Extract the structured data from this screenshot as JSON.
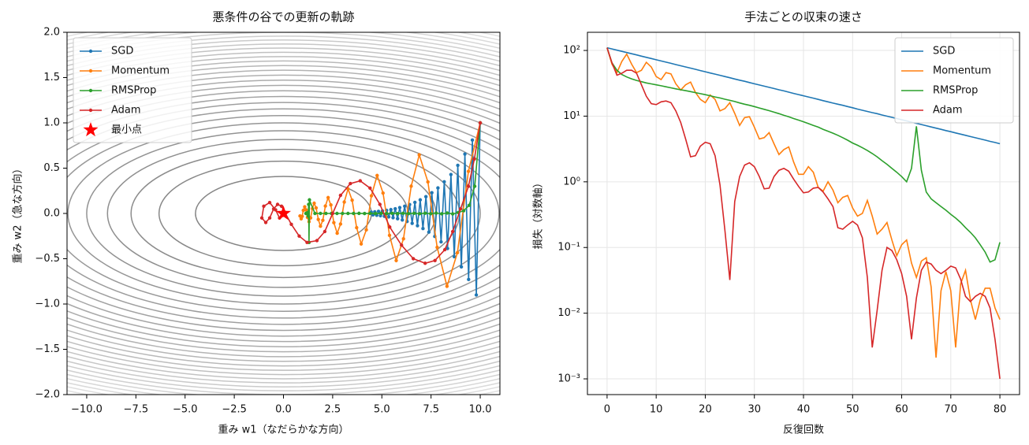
{
  "chart_data": [
    {
      "type": "line",
      "title": "悪条件の谷での更新の軌跡",
      "xlabel": "重み w1（なだらかな方向）",
      "ylabel": "重み w2（急な方向）",
      "xlim": [
        -11,
        11
      ],
      "ylim": [
        -2,
        2
      ],
      "xticks": [
        {
          "value": -10,
          "label": "−10.0"
        },
        {
          "value": -7.5,
          "label": "−7.5"
        },
        {
          "value": -5,
          "label": "−5.0"
        },
        {
          "value": -2.5,
          "label": "−2.5"
        },
        {
          "value": 0,
          "label": "0.0"
        },
        {
          "value": 2.5,
          "label": "2.5"
        },
        {
          "value": 5,
          "label": "5.0"
        },
        {
          "value": 7.5,
          "label": "7.5"
        },
        {
          "value": 10,
          "label": "10.0"
        }
      ],
      "yticks": [
        {
          "value": -2,
          "label": "−2.0"
        },
        {
          "value": -1.5,
          "label": "−1.5"
        },
        {
          "value": -1,
          "label": "−1.0"
        },
        {
          "value": -0.5,
          "label": "−0.5"
        },
        {
          "value": 0,
          "label": "0.0"
        },
        {
          "value": 0.5,
          "label": "0.5"
        },
        {
          "value": 1,
          "label": "1.0"
        },
        {
          "value": 1.5,
          "label": "1.5"
        },
        {
          "value": 2,
          "label": "2.0"
        }
      ],
      "grid": false,
      "markers": true,
      "legend": "upper left",
      "contours": {
        "levels": [
          10,
          20,
          30,
          40,
          50,
          60,
          70,
          80,
          90,
          100,
          110,
          120,
          130,
          140,
          150,
          160,
          170,
          180,
          190,
          200,
          210,
          220,
          230,
          240,
          250,
          260,
          270,
          280,
          290,
          300
        ],
        "weights": [
          1,
          120
        ],
        "colors": [
          "#858585",
          "#e4e4e4"
        ]
      },
      "series": [
        {
          "name": "SGD",
          "color": "#1f77b4",
          "x": [
            10,
            9.8,
            9.6,
            9.41,
            9.22,
            9.04,
            8.86,
            8.68,
            8.51,
            8.34,
            8.17,
            8.01,
            7.85,
            7.69,
            7.54,
            7.39,
            7.24,
            7.09,
            6.95,
            6.81,
            6.68,
            6.54,
            6.41,
            6.28,
            6.16,
            6.04,
            5.91,
            5.8,
            5.68,
            5.57,
            5.46,
            5.35,
            5.24,
            5.13,
            5.03,
            4.93,
            4.83,
            4.74,
            4.64,
            4.55,
            4.46
          ],
          "values": [
            1,
            -0.9,
            0.81,
            -0.729,
            0.656,
            -0.59,
            0.531,
            -0.478,
            0.43,
            -0.387,
            0.349,
            -0.314,
            0.282,
            -0.254,
            0.229,
            -0.206,
            0.185,
            -0.167,
            0.15,
            -0.135,
            0.122,
            -0.109,
            0.098,
            -0.089,
            0.08,
            -0.072,
            0.065,
            -0.058,
            0.052,
            -0.047,
            0.042,
            -0.038,
            0.034,
            -0.031,
            0.028,
            -0.025,
            0.023,
            -0.02,
            0.018,
            -0.016,
            0.015
          ]
        },
        {
          "name": "Momentum",
          "color": "#ff7f0e",
          "x": [
            10,
            9.4,
            8.84,
            8.31,
            7.81,
            7.34,
            6.9,
            6.49,
            6.1,
            5.73,
            5.39,
            5.06,
            4.76,
            4.47,
            4.21,
            3.95,
            3.72,
            3.49,
            3.28,
            3.09,
            2.9,
            2.73,
            2.56,
            2.41,
            2.27,
            2.13,
            2,
            1.88,
            1.77,
            1.66,
            1.56,
            1.47,
            1.38,
            1.3,
            1.22,
            1.15,
            1.08,
            1.01,
            0.95,
            0.9,
            0.84
          ],
          "values": [
            1,
            0.465,
            -0.433,
            -0.804,
            -0.374,
            0.348,
            0.647,
            0.301,
            -0.28,
            -0.52,
            -0.242,
            0.225,
            0.419,
            0.195,
            -0.181,
            -0.337,
            -0.157,
            0.146,
            0.271,
            0.126,
            -0.117,
            -0.218,
            -0.102,
            0.094,
            0.175,
            0.082,
            -0.076,
            -0.141,
            -0.066,
            0.061,
            0.113,
            0.053,
            -0.049,
            -0.091,
            -0.043,
            0.04,
            0.073,
            0.034,
            -0.032,
            -0.059,
            -0.028
          ]
        },
        {
          "name": "RMSProp",
          "color": "#2ca02c",
          "x": [
            10,
            9.72,
            9.44,
            9.16,
            8.88,
            8.6,
            8.32,
            8.04,
            7.76,
            7.48,
            7.2,
            6.92,
            6.64,
            6.36,
            6.08,
            5.8,
            5.52,
            5.24,
            4.96,
            4.68,
            4.4,
            4.12,
            3.84,
            3.56,
            3.28,
            3,
            2.72,
            2.44,
            2.16,
            1.88,
            1.6,
            1.32,
            1.3,
            1.28,
            1.26,
            1.24,
            1.22,
            1.2,
            1.18,
            1.16,
            1.14
          ],
          "values": [
            1,
            0.3,
            0.09,
            0.03,
            0.01,
            -0.005,
            0.005,
            -0.004,
            0.004,
            -0.003,
            0.003,
            -0.003,
            0.002,
            -0.002,
            0.002,
            -0.002,
            0.002,
            -0.001,
            0.001,
            -0.001,
            0.001,
            -0.001,
            0.001,
            0,
            0,
            0,
            0,
            0,
            0,
            0,
            0,
            0.15,
            -0.32,
            0.1,
            -0.03,
            0.01,
            0,
            0,
            0,
            0,
            0
          ]
        },
        {
          "name": "Adam",
          "color": "#d62728",
          "x": [
            10,
            9.7,
            9.4,
            9,
            8.6,
            8.2,
            7.7,
            7.2,
            6.6,
            6,
            5.4,
            4.9,
            4.4,
            3.9,
            3.4,
            2.9,
            2.5,
            2.1,
            1.7,
            1.2,
            0.8,
            0.4,
            0.1,
            -0.1,
            -0.3,
            -0.5,
            -0.7,
            -0.9,
            -1.1,
            -1,
            -0.7,
            -0.4,
            -0.2,
            0,
            0.1
          ],
          "values": [
            1,
            0.6,
            0.3,
            0.05,
            -0.2,
            -0.4,
            -0.52,
            -0.55,
            -0.5,
            -0.35,
            -0.15,
            0.1,
            0.28,
            0.36,
            0.33,
            0.2,
            0,
            -0.2,
            -0.3,
            -0.32,
            -0.25,
            -0.12,
            0,
            0.08,
            0.1,
            0.05,
            -0.05,
            -0.1,
            -0.05,
            0.08,
            0.12,
            0.04,
            -0.05,
            -0.02,
            0.01
          ]
        }
      ],
      "marker_point": {
        "name": "最小点",
        "x": 0,
        "y": 0,
        "color": "#ff0000"
      }
    },
    {
      "type": "line",
      "title": "手法ごとの収束の速さ",
      "xlabel": "反復回数",
      "ylabel": "損失（対数軸）",
      "xlim": [
        -4,
        84
      ],
      "ylim": [
        0.000576,
        189
      ],
      "ylog": true,
      "grid": true,
      "markers": false,
      "legend": "upper right",
      "xticks": [
        0,
        10,
        20,
        30,
        40,
        50,
        60,
        70,
        80
      ],
      "yticks": [
        {
          "value": 0.001,
          "label": "10⁻³"
        },
        {
          "value": 0.01,
          "label": "10⁻²"
        },
        {
          "value": 0.1,
          "label": "10⁻¹"
        },
        {
          "value": 1,
          "label": "10⁰"
        },
        {
          "value": 10,
          "label": "10¹"
        },
        {
          "value": 100,
          "label": "10²"
        }
      ],
      "x": [
        0,
        1,
        2,
        3,
        4,
        5,
        6,
        7,
        8,
        9,
        10,
        11,
        12,
        13,
        14,
        15,
        16,
        17,
        18,
        19,
        20,
        21,
        22,
        23,
        24,
        25,
        26,
        27,
        28,
        29,
        30,
        31,
        32,
        33,
        34,
        35,
        36,
        37,
        38,
        39,
        40,
        41,
        42,
        43,
        44,
        45,
        46,
        47,
        48,
        49,
        50,
        51,
        52,
        53,
        54,
        55,
        56,
        57,
        58,
        59,
        60,
        61,
        62,
        63,
        64,
        65,
        66,
        67,
        68,
        69,
        70,
        71,
        72,
        73,
        74,
        75,
        76,
        77,
        78,
        79,
        80
      ],
      "series": [
        {
          "name": "SGD",
          "color": "#1f77b4",
          "values": [
            110,
            105.5,
            101.1,
            96.95,
            92.96,
            89.13,
            85.46,
            81.94,
            78.56,
            75.33,
            72.2,
            69.2,
            66.4,
            63.6,
            61,
            58.5,
            56.1,
            53.8,
            51.6,
            49.4,
            47.4,
            45.4,
            43.6,
            41.8,
            40.1,
            38.4,
            36.8,
            35.3,
            33.9,
            32.5,
            31.1,
            29.8,
            28.6,
            27.4,
            26.3,
            25.2,
            24.2,
            23.2,
            22.2,
            21.3,
            20.4,
            19.6,
            18.8,
            18,
            17.2,
            16.5,
            15.8,
            15.2,
            14.6,
            14,
            13.4,
            12.8,
            12.3,
            11.8,
            11.3,
            10.9,
            10.4,
            9.98,
            9.57,
            9.18,
            8.81,
            8.45,
            8.1,
            7.77,
            7.45,
            7.14,
            6.84,
            6.56,
            6.29,
            6.03,
            5.79,
            5.55,
            5.32,
            5.1,
            4.89,
            4.69,
            4.5,
            4.31,
            4.13,
            3.97,
            3.8
          ]
        },
        {
          "name": "Momentum",
          "color": "#ff7f0e",
          "values": [
            110,
            62,
            46,
            68,
            88,
            62,
            46,
            50,
            66,
            56,
            40,
            36,
            46,
            44,
            31,
            25,
            30,
            33,
            23,
            18,
            16,
            21,
            18,
            12,
            13,
            16,
            11,
            7.2,
            9.5,
            9.8,
            6.8,
            4.5,
            4.7,
            5.6,
            3.8,
            2.6,
            3.1,
            3.4,
            2,
            1.3,
            1.3,
            1.7,
            1.4,
            0.82,
            0.72,
            1,
            0.75,
            0.48,
            0.58,
            0.62,
            0.4,
            0.3,
            0.33,
            0.52,
            0.3,
            0.16,
            0.19,
            0.24,
            0.13,
            0.075,
            0.11,
            0.13,
            0.058,
            0.035,
            0.062,
            0.07,
            0.025,
            0.0021,
            0.022,
            0.043,
            0.022,
            0.003,
            0.028,
            0.045,
            0.016,
            0.008,
            0.016,
            0.024,
            0.024,
            0.012,
            0.008
          ]
        },
        {
          "name": "RMSProp",
          "color": "#2ca02c",
          "values": [
            110,
            65,
            50,
            43,
            39.5,
            37,
            35,
            33.5,
            32,
            31,
            30,
            29,
            28,
            27,
            26,
            25.2,
            24.4,
            23.6,
            22.8,
            22,
            21.2,
            20.4,
            19.6,
            18.9,
            18.1,
            17.4,
            16.7,
            15.9,
            15.2,
            14.6,
            14,
            13.3,
            12.7,
            12.1,
            11.5,
            10.9,
            10.3,
            9.8,
            9.2,
            8.7,
            8.2,
            7.7,
            7.2,
            6.8,
            6.3,
            5.9,
            5.5,
            5.1,
            4.7,
            4.3,
            3.9,
            3.6,
            3.3,
            3,
            2.7,
            2.4,
            2.1,
            1.85,
            1.6,
            1.4,
            1.2,
            1,
            1.6,
            7,
            1.5,
            0.7,
            0.55,
            0.48,
            0.42,
            0.37,
            0.32,
            0.28,
            0.24,
            0.2,
            0.17,
            0.14,
            0.11,
            0.085,
            0.06,
            0.065,
            0.12
          ]
        },
        {
          "name": "Adam",
          "color": "#d62728",
          "values": [
            110,
            65,
            42,
            45,
            50,
            50,
            45,
            30,
            20,
            15.5,
            15,
            16.5,
            17,
            16,
            12,
            8,
            4.5,
            2.4,
            2.5,
            3.5,
            4,
            3.8,
            2.5,
            0.9,
            0.18,
            0.032,
            0.5,
            1.2,
            1.8,
            1.95,
            1.7,
            1.2,
            0.78,
            0.8,
            1.2,
            1.5,
            1.6,
            1.45,
            1.1,
            0.85,
            0.68,
            0.7,
            0.8,
            0.82,
            0.7,
            0.55,
            0.42,
            0.2,
            0.19,
            0.22,
            0.25,
            0.22,
            0.14,
            0.035,
            0.003,
            0.011,
            0.045,
            0.1,
            0.09,
            0.065,
            0.04,
            0.018,
            0.004,
            0.017,
            0.045,
            0.06,
            0.056,
            0.045,
            0.04,
            0.045,
            0.052,
            0.049,
            0.033,
            0.018,
            0.015,
            0.018,
            0.02,
            0.018,
            0.012,
            0.004,
            0.001
          ]
        }
      ]
    }
  ]
}
